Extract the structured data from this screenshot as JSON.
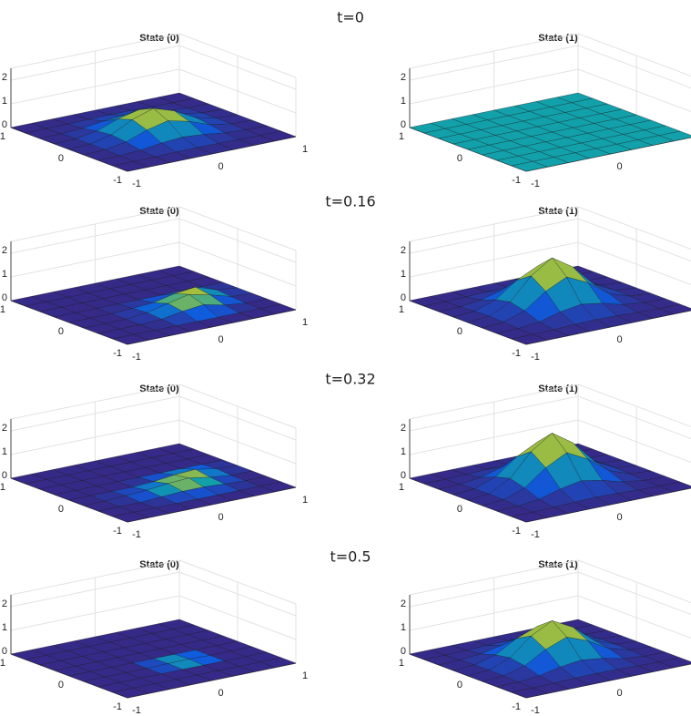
{
  "time_labels": [
    "t=0",
    "t=0.16",
    "t=0.32",
    "t=0.5"
  ],
  "chart_data": [
    {
      "type": "surface",
      "title": "State (0)",
      "x": [
        -1,
        -0.75,
        -0.5,
        -0.25,
        0,
        0.25,
        0.5,
        0.75,
        1
      ],
      "y": [
        -1,
        -0.75,
        -0.5,
        -0.25,
        0,
        0.25,
        0.5,
        0.75,
        1
      ],
      "z": [
        [
          0,
          0,
          0,
          0,
          0,
          0,
          0,
          0,
          0
        ],
        [
          0,
          0,
          0.01,
          0.03,
          0.04,
          0.03,
          0.01,
          0,
          0
        ],
        [
          0,
          0.01,
          0.06,
          0.18,
          0.25,
          0.18,
          0.06,
          0.01,
          0
        ],
        [
          0,
          0.03,
          0.18,
          0.5,
          0.71,
          0.5,
          0.18,
          0.03,
          0
        ],
        [
          0,
          0.04,
          0.25,
          0.71,
          1,
          0.71,
          0.25,
          0.04,
          0
        ],
        [
          0,
          0.03,
          0.18,
          0.5,
          0.71,
          0.5,
          0.18,
          0.03,
          0
        ],
        [
          0,
          0.01,
          0.06,
          0.18,
          0.25,
          0.18,
          0.06,
          0.01,
          0
        ],
        [
          0,
          0,
          0.01,
          0.03,
          0.04,
          0.03,
          0.01,
          0,
          0
        ],
        [
          0,
          0,
          0,
          0,
          0,
          0,
          0,
          0,
          0
        ]
      ],
      "xlim": [
        -1,
        1
      ],
      "ylim": [
        -1,
        1
      ],
      "zlim": [
        0,
        2.5
      ],
      "xticks": [
        -1,
        0,
        1
      ],
      "yticks": [
        -1,
        0,
        1
      ],
      "zticks": [
        0,
        1,
        2
      ]
    },
    {
      "type": "surface",
      "title": "State (1)",
      "x": [
        -1,
        -0.75,
        -0.5,
        -0.25,
        0,
        0.25,
        0.5,
        0.75,
        1
      ],
      "y": [
        -1,
        -0.75,
        -0.5,
        -0.25,
        0,
        0.25,
        0.5,
        0.75,
        1
      ],
      "z": [
        [
          0,
          0,
          0,
          0,
          0,
          0,
          0,
          0,
          0
        ],
        [
          0,
          0,
          0,
          0,
          0,
          0,
          0,
          0,
          0
        ],
        [
          0,
          0,
          0,
          0,
          0,
          0,
          0,
          0,
          0
        ],
        [
          0,
          0,
          0,
          0,
          0,
          0,
          0,
          0,
          0
        ],
        [
          0,
          0,
          0,
          0,
          0,
          0,
          0,
          0,
          0
        ],
        [
          0,
          0,
          0,
          0,
          0,
          0,
          0,
          0,
          0
        ],
        [
          0,
          0,
          0,
          0,
          0,
          0,
          0,
          0,
          0
        ],
        [
          0,
          0,
          0,
          0,
          0,
          0,
          0,
          0,
          0
        ],
        [
          0,
          0,
          0,
          0,
          0,
          0,
          0,
          0,
          0
        ]
      ],
      "xlim": [
        -1,
        1
      ],
      "ylim": [
        -1,
        1
      ],
      "zlim": [
        0,
        2.5
      ],
      "xticks": [
        -1,
        0,
        1
      ],
      "yticks": [
        -1,
        0,
        1
      ],
      "zticks": [
        0,
        1,
        2
      ]
    },
    {
      "type": "surface",
      "title": "State (0)",
      "x": [
        -1,
        -0.75,
        -0.5,
        -0.25,
        0,
        0.25,
        0.5,
        0.75,
        1
      ],
      "y": [
        -1,
        -0.75,
        -0.5,
        -0.25,
        0,
        0.25,
        0.5,
        0.75,
        1
      ],
      "z": [
        [
          0,
          0,
          0,
          0,
          0,
          0,
          0,
          0,
          0
        ],
        [
          0,
          0,
          0,
          0,
          0,
          0,
          0,
          0,
          0
        ],
        [
          0,
          0,
          0,
          0.05,
          0.2,
          0.3,
          0.1,
          0,
          0
        ],
        [
          0,
          0,
          0,
          0.1,
          0.3,
          0.5,
          0.3,
          0.05,
          0
        ],
        [
          0,
          0,
          0,
          0.05,
          0.1,
          0.3,
          0.4,
          0.1,
          0
        ],
        [
          0,
          0,
          0,
          0,
          0,
          0,
          0,
          0,
          0
        ],
        [
          0,
          0,
          0,
          0,
          0,
          0,
          0,
          0,
          0
        ],
        [
          0,
          0,
          0,
          0,
          0,
          0,
          0,
          0,
          0
        ],
        [
          0,
          0,
          0,
          0,
          0,
          0,
          0,
          0,
          0
        ]
      ],
      "xlim": [
        -1,
        1
      ],
      "ylim": [
        -1,
        1
      ],
      "zlim": [
        0,
        2.5
      ],
      "xticks": [
        -1,
        0,
        1
      ],
      "yticks": [
        -1,
        0,
        1
      ],
      "zticks": [
        0,
        1,
        2
      ]
    },
    {
      "type": "surface",
      "title": "State (1)",
      "x": [
        -1,
        -0.75,
        -0.5,
        -0.25,
        0,
        0.25,
        0.5,
        0.75,
        1
      ],
      "y": [
        -1,
        -0.75,
        -0.5,
        -0.25,
        0,
        0.25,
        0.5,
        0.75,
        1
      ],
      "z": [
        [
          0,
          0,
          0,
          0,
          0,
          0,
          0,
          0,
          0
        ],
        [
          0,
          0,
          0.02,
          0.06,
          0.08,
          0.06,
          0.02,
          0,
          0
        ],
        [
          0,
          0.02,
          0.12,
          0.36,
          0.5,
          0.36,
          0.12,
          0.02,
          0
        ],
        [
          0,
          0.06,
          0.36,
          1,
          1.42,
          1,
          0.36,
          0.06,
          0
        ],
        [
          0,
          0.08,
          0.5,
          1.42,
          2,
          1.42,
          0.5,
          0.08,
          0
        ],
        [
          0,
          0.06,
          0.36,
          1,
          1.42,
          1,
          0.36,
          0.06,
          0
        ],
        [
          0,
          0.02,
          0.12,
          0.36,
          0.5,
          0.36,
          0.12,
          0.02,
          0
        ],
        [
          0,
          0,
          0.02,
          0.06,
          0.08,
          0.06,
          0.02,
          0,
          0
        ],
        [
          0,
          0,
          0,
          0,
          0,
          0,
          0,
          0,
          0
        ]
      ],
      "xlim": [
        -1,
        1
      ],
      "ylim": [
        -1,
        1
      ],
      "zlim": [
        0,
        2.5
      ],
      "xticks": [
        -1,
        0,
        1
      ],
      "yticks": [
        -1,
        0,
        1
      ],
      "zticks": [
        0,
        1,
        2
      ]
    },
    {
      "type": "surface",
      "title": "State (0)",
      "x": [
        -1,
        -0.75,
        -0.5,
        -0.25,
        0,
        0.25,
        0.5,
        0.75,
        1
      ],
      "y": [
        -1,
        -0.75,
        -0.5,
        -0.25,
        0,
        0.25,
        0.5,
        0.75,
        1
      ],
      "z": [
        [
          0,
          0,
          0,
          0,
          0,
          0,
          0,
          0,
          0
        ],
        [
          0,
          0,
          0,
          0,
          0,
          0,
          0,
          0,
          0
        ],
        [
          0,
          0,
          0,
          0.05,
          0.1,
          0.1,
          0.05,
          0,
          0
        ],
        [
          0,
          0,
          0.05,
          0.1,
          0.2,
          0.25,
          0.1,
          0,
          0
        ],
        [
          0,
          0,
          0,
          0,
          0.05,
          0.15,
          0.2,
          0.05,
          0
        ],
        [
          0,
          0,
          0,
          0,
          0,
          0,
          0,
          0,
          0
        ],
        [
          0,
          0,
          0,
          0,
          0,
          0,
          0,
          0,
          0
        ],
        [
          0,
          0,
          0,
          0,
          0,
          0,
          0,
          0,
          0
        ],
        [
          0,
          0,
          0,
          0,
          0,
          0,
          0,
          0,
          0
        ]
      ],
      "xlim": [
        -1,
        1
      ],
      "ylim": [
        -1,
        1
      ],
      "zlim": [
        0,
        2.5
      ],
      "xticks": [
        -1,
        0,
        1
      ],
      "yticks": [
        -1,
        0,
        1
      ],
      "zticks": [
        0,
        1,
        2
      ]
    },
    {
      "type": "surface",
      "title": "State (1)",
      "x": [
        -1,
        -0.75,
        -0.5,
        -0.25,
        0,
        0.25,
        0.5,
        0.75,
        1
      ],
      "y": [
        -1,
        -0.75,
        -0.5,
        -0.25,
        0,
        0.25,
        0.5,
        0.75,
        1
      ],
      "z": [
        [
          0,
          0,
          0,
          0,
          0,
          0,
          0,
          0,
          0
        ],
        [
          0,
          0,
          0.02,
          0.06,
          0.08,
          0.06,
          0.02,
          0,
          0
        ],
        [
          0,
          0.02,
          0.13,
          0.38,
          0.55,
          0.38,
          0.13,
          0.02,
          0
        ],
        [
          0,
          0.06,
          0.38,
          1.05,
          1.5,
          1.05,
          0.38,
          0.06,
          0
        ],
        [
          0,
          0.08,
          0.55,
          1.5,
          2.1,
          1.5,
          0.55,
          0.08,
          0
        ],
        [
          0,
          0.06,
          0.38,
          1.05,
          1.5,
          1.05,
          0.38,
          0.06,
          0
        ],
        [
          0,
          0.02,
          0.13,
          0.38,
          0.55,
          0.38,
          0.13,
          0.02,
          0
        ],
        [
          0,
          0,
          0.02,
          0.06,
          0.08,
          0.06,
          0.02,
          0,
          0
        ],
        [
          0,
          0,
          0,
          0,
          0,
          0,
          0,
          0,
          0
        ]
      ],
      "xlim": [
        -1,
        1
      ],
      "ylim": [
        -1,
        1
      ],
      "zlim": [
        0,
        2.5
      ],
      "xticks": [
        -1,
        0,
        1
      ],
      "yticks": [
        -1,
        0,
        1
      ],
      "zticks": [
        0,
        1,
        2
      ]
    },
    {
      "type": "surface",
      "title": "State (0)",
      "x": [
        -1,
        -0.75,
        -0.5,
        -0.25,
        0,
        0.25,
        0.5,
        0.75,
        1
      ],
      "y": [
        -1,
        -0.75,
        -0.5,
        -0.25,
        0,
        0.25,
        0.5,
        0.75,
        1
      ],
      "z": [
        [
          0,
          0,
          0,
          0,
          0,
          0,
          0,
          0,
          0
        ],
        [
          0,
          0,
          0,
          0,
          0,
          0,
          0,
          0,
          0
        ],
        [
          0,
          0,
          0,
          0,
          0,
          0,
          0,
          0,
          0
        ],
        [
          0,
          0,
          0,
          0,
          0.02,
          0.03,
          0,
          0,
          0
        ],
        [
          0,
          0,
          0,
          0,
          0,
          0,
          0,
          0,
          0
        ],
        [
          0,
          0,
          0,
          0,
          0,
          0,
          0,
          0,
          0
        ],
        [
          0,
          0,
          0,
          0,
          0,
          0,
          0,
          0,
          0
        ],
        [
          0,
          0,
          0,
          0,
          0,
          0,
          0,
          0,
          0
        ],
        [
          0,
          0,
          0,
          0,
          0,
          0,
          0,
          0,
          0
        ]
      ],
      "xlim": [
        -1,
        1
      ],
      "ylim": [
        -1,
        1
      ],
      "zlim": [
        0,
        2.5
      ],
      "xticks": [
        -1,
        0,
        1
      ],
      "yticks": [
        -1,
        0,
        1
      ],
      "zticks": [
        0,
        1,
        2
      ]
    },
    {
      "type": "surface",
      "title": "State (1)",
      "x": [
        -1,
        -0.75,
        -0.5,
        -0.25,
        0,
        0.25,
        0.5,
        0.75,
        1
      ],
      "y": [
        -1,
        -0.75,
        -0.5,
        -0.25,
        0,
        0.25,
        0.5,
        0.75,
        1
      ],
      "z": [
        [
          0,
          0,
          0,
          0,
          0,
          0,
          0,
          0,
          0
        ],
        [
          0,
          0,
          0.02,
          0.05,
          0.06,
          0.05,
          0.02,
          0,
          0
        ],
        [
          0,
          0.02,
          0.1,
          0.29,
          0.4,
          0.29,
          0.1,
          0.02,
          0
        ],
        [
          0,
          0.05,
          0.29,
          0.8,
          1.14,
          0.8,
          0.29,
          0.05,
          0
        ],
        [
          0,
          0.06,
          0.4,
          1.14,
          1.6,
          1.14,
          0.4,
          0.06,
          0
        ],
        [
          0,
          0.05,
          0.29,
          0.8,
          1.14,
          0.8,
          0.29,
          0.05,
          0
        ],
        [
          0,
          0.02,
          0.1,
          0.29,
          0.4,
          0.29,
          0.1,
          0.02,
          0
        ],
        [
          0,
          0,
          0.02,
          0.05,
          0.06,
          0.05,
          0.02,
          0,
          0
        ],
        [
          0,
          0,
          0,
          0,
          0,
          0,
          0,
          0,
          0
        ]
      ],
      "xlim": [
        -1,
        1
      ],
      "ylim": [
        -1,
        1
      ],
      "zlim": [
        0,
        2.5
      ],
      "xticks": [
        -1,
        0,
        1
      ],
      "yticks": [
        -1,
        0,
        1
      ],
      "zticks": [
        0,
        1,
        2
      ]
    }
  ]
}
